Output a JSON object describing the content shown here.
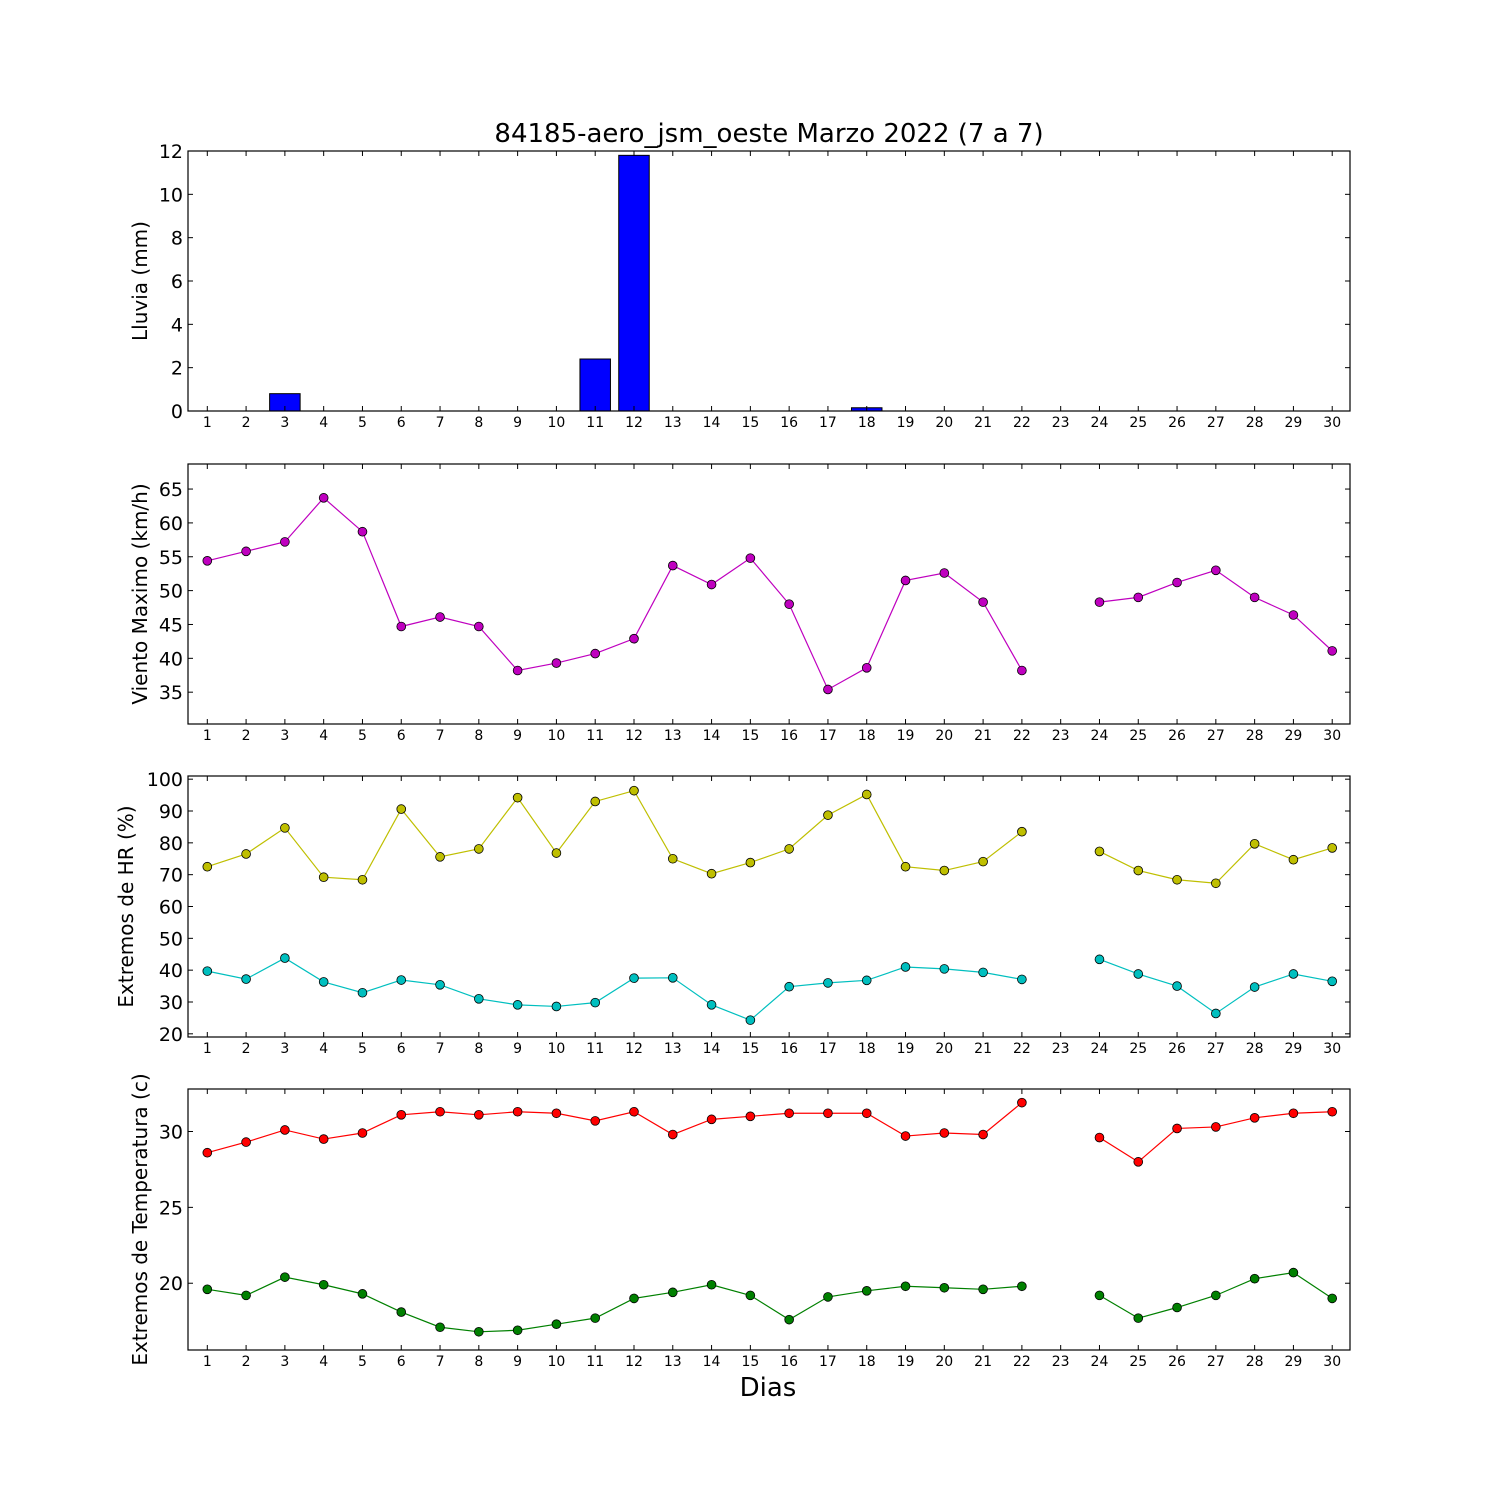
{
  "chart_data": [
    {
      "type": "bar",
      "title": "84185-aero_jsm_oeste Marzo 2022  (7 a 7)",
      "ylabel": "Lluvia (mm)",
      "xlabel": "",
      "ylim": [
        0,
        12
      ],
      "yticks": [
        0,
        2,
        4,
        6,
        8,
        10,
        12
      ],
      "x": [
        1,
        2,
        3,
        4,
        5,
        6,
        7,
        8,
        9,
        10,
        11,
        12,
        13,
        14,
        15,
        16,
        17,
        18,
        19,
        20,
        21,
        22,
        23,
        24,
        25,
        26,
        27,
        28,
        29,
        30
      ],
      "series": [
        {
          "color": "#0000ff",
          "values": [
            0,
            0,
            0.8,
            0,
            0,
            0,
            0,
            0,
            0,
            0,
            2.4,
            11.8,
            0,
            0,
            0,
            0,
            0,
            0.15,
            0,
            0,
            0,
            0,
            null,
            0,
            0,
            0,
            0,
            0,
            0,
            0
          ]
        }
      ]
    },
    {
      "type": "line",
      "ylabel": "Viento Maximo (km/h)",
      "ylim": [
        30.3,
        68.7
      ],
      "yticks": [
        35,
        40,
        45,
        50,
        55,
        60,
        65
      ],
      "x": [
        1,
        2,
        3,
        4,
        5,
        6,
        7,
        8,
        9,
        10,
        11,
        12,
        13,
        14,
        15,
        16,
        17,
        18,
        19,
        20,
        21,
        22,
        23,
        24,
        25,
        26,
        27,
        28,
        29,
        30
      ],
      "series": [
        {
          "color": "#bf00bf",
          "values": [
            54.4,
            55.8,
            57.2,
            63.7,
            58.7,
            44.7,
            46.1,
            44.7,
            38.2,
            39.3,
            40.7,
            42.9,
            53.7,
            50.9,
            54.8,
            48.0,
            35.4,
            38.6,
            51.5,
            52.6,
            48.3,
            38.2,
            null,
            48.3,
            49.0,
            51.2,
            53.0,
            49.0,
            46.4,
            41.1
          ]
        }
      ]
    },
    {
      "type": "line",
      "ylabel": "Extremos de HR (%)",
      "ylim": [
        19,
        101
      ],
      "yticks": [
        20,
        30,
        40,
        50,
        60,
        70,
        80,
        90,
        100
      ],
      "x": [
        1,
        2,
        3,
        4,
        5,
        6,
        7,
        8,
        9,
        10,
        11,
        12,
        13,
        14,
        15,
        16,
        17,
        18,
        19,
        20,
        21,
        22,
        23,
        24,
        25,
        26,
        27,
        28,
        29,
        30
      ],
      "series": [
        {
          "color": "#bfbf00",
          "values": [
            72.5,
            76.5,
            84.7,
            69.2,
            68.4,
            90.6,
            75.6,
            78.1,
            94.2,
            76.8,
            93.0,
            96.4,
            75.0,
            70.3,
            73.8,
            78.1,
            88.7,
            95.2,
            72.5,
            71.3,
            74.1,
            83.5,
            null,
            77.3,
            71.3,
            68.4,
            67.3,
            79.7,
            74.7,
            78.4
          ]
        },
        {
          "color": "#00bfbf",
          "values": [
            39.7,
            37.2,
            43.8,
            36.3,
            32.9,
            36.9,
            35.4,
            31.0,
            29.1,
            28.6,
            29.8,
            37.5,
            37.6,
            29.1,
            24.3,
            34.8,
            36.0,
            36.8,
            41.0,
            40.4,
            39.3,
            37.1,
            null,
            43.4,
            38.8,
            35.0,
            26.4,
            34.7,
            38.8,
            36.5
          ]
        }
      ]
    },
    {
      "type": "line",
      "ylabel": "Extremos de Temperatura (c)",
      "xlabel": "Dias",
      "ylim": [
        15.6,
        32.8
      ],
      "yticks": [
        20,
        25,
        30
      ],
      "x": [
        1,
        2,
        3,
        4,
        5,
        6,
        7,
        8,
        9,
        10,
        11,
        12,
        13,
        14,
        15,
        16,
        17,
        18,
        19,
        20,
        21,
        22,
        23,
        24,
        25,
        26,
        27,
        28,
        29,
        30
      ],
      "series": [
        {
          "color": "#ff0000",
          "values": [
            28.6,
            29.3,
            30.1,
            29.5,
            29.9,
            31.1,
            31.3,
            31.1,
            31.3,
            31.2,
            30.7,
            31.3,
            29.8,
            30.8,
            31.0,
            31.2,
            31.2,
            31.2,
            29.7,
            29.9,
            29.8,
            31.9,
            null,
            29.6,
            28.0,
            30.2,
            30.3,
            30.9,
            31.2,
            31.3
          ]
        },
        {
          "color": "#008000",
          "values": [
            19.6,
            19.2,
            20.4,
            19.9,
            19.3,
            18.1,
            17.1,
            16.8,
            16.9,
            17.3,
            17.7,
            19.0,
            19.4,
            19.9,
            19.2,
            17.6,
            19.1,
            19.5,
            19.8,
            19.7,
            19.6,
            19.8,
            null,
            19.2,
            17.7,
            18.4,
            19.2,
            20.3,
            20.7,
            19.0
          ]
        }
      ]
    }
  ]
}
